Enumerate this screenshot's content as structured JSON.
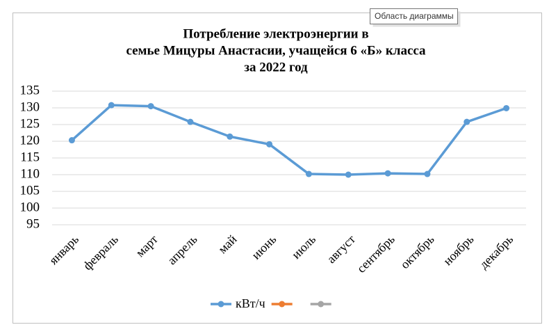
{
  "tooltip": "Область диаграммы",
  "chart_data": {
    "type": "line",
    "title": [
      "Потребление электроэнергии в",
      "семье Мицуры Анастасии, учащейся 6 «Б» класса",
      "за 2022 год"
    ],
    "categories": [
      "январь",
      "февраль",
      "март",
      "апрель",
      "май",
      "июнь",
      "июль",
      "август",
      "сентябрь",
      "октябрь",
      "ноябрь",
      "декабрь"
    ],
    "series": [
      {
        "name": "кВт/ч",
        "color": "#5b9bd5",
        "values": [
          120.3,
          130.8,
          130.5,
          125.8,
          121.4,
          119.1,
          110.2,
          110.0,
          110.4,
          110.2,
          125.8,
          129.9
        ]
      },
      {
        "color": "#ed7d31",
        "values": [
          null,
          null,
          null,
          null,
          null,
          null,
          null,
          null,
          null,
          null,
          null,
          null
        ]
      },
      {
        "color": "#a5a5a5",
        "values": [
          null,
          null,
          null,
          null,
          null,
          null,
          null,
          null,
          null,
          null,
          null,
          null
        ]
      }
    ],
    "ylim": [
      95,
      135
    ],
    "yticks": [
      95,
      100,
      105,
      110,
      115,
      120,
      125,
      130,
      135
    ],
    "grid": true,
    "legend": "bottom"
  }
}
